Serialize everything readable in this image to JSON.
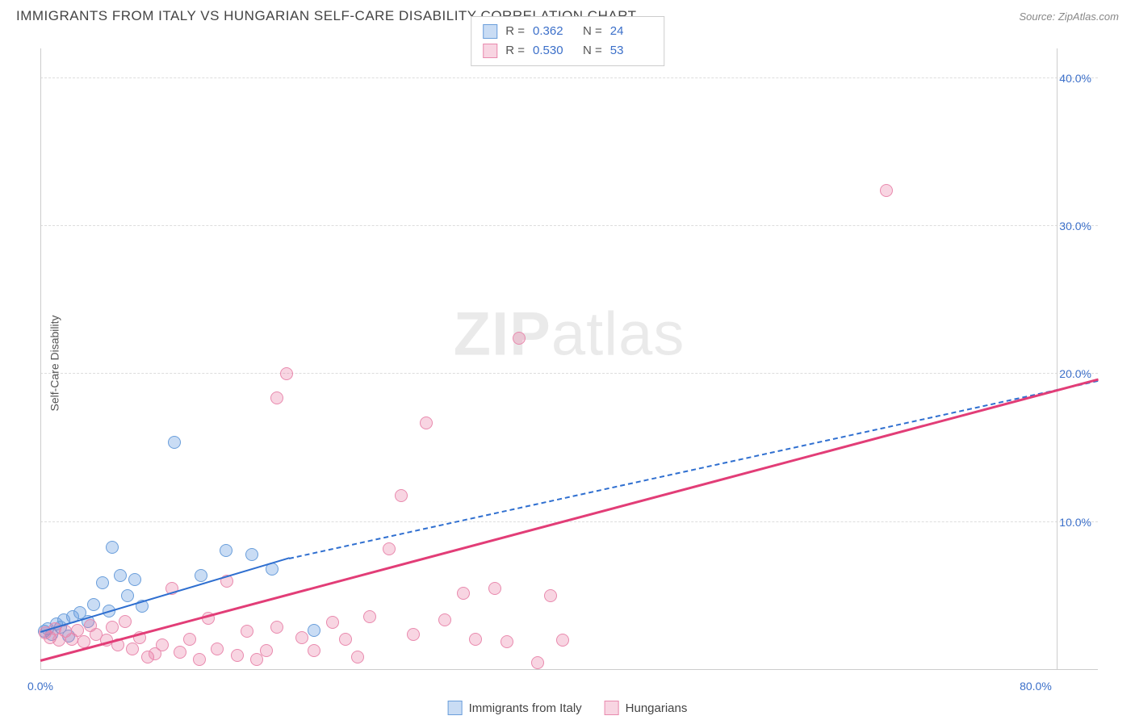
{
  "header": {
    "title": "IMMIGRANTS FROM ITALY VS HUNGARIAN SELF-CARE DISABILITY CORRELATION CHART",
    "source_prefix": "Source: ",
    "source_name": "ZipAtlas.com"
  },
  "watermark": {
    "zip": "ZIP",
    "atlas": "atlas"
  },
  "chart": {
    "type": "scatter",
    "ylabel": "Self-Care Disability",
    "xlim": [
      0,
      85
    ],
    "ylim": [
      0,
      42
    ],
    "background_color": "#ffffff",
    "grid_color": "#dddddd",
    "axis_color": "#cccccc",
    "tick_color": "#3b6fc9",
    "xticks": [
      {
        "v": 0,
        "label": "0.0%"
      },
      {
        "v": 80,
        "label": "80.0%"
      }
    ],
    "yticks": [
      {
        "v": 10,
        "label": "10.0%"
      },
      {
        "v": 20,
        "label": "20.0%"
      },
      {
        "v": 30,
        "label": "30.0%"
      },
      {
        "v": 40,
        "label": "40.0%"
      }
    ],
    "point_radius": 8,
    "series": [
      {
        "id": "italy",
        "name": "Immigrants from Italy",
        "color_fill": "rgba(99,155,224,0.35)",
        "color_stroke": "#6a9edb",
        "R": "0.362",
        "N": "24",
        "trend": {
          "x1": 0,
          "y1": 2.5,
          "x2": 20,
          "y2": 7.5,
          "color": "#2f6fd0",
          "width": 2,
          "dash_ext": {
            "x2": 85,
            "y2": 19.5
          }
        },
        "points": [
          [
            0.3,
            2.6
          ],
          [
            0.6,
            2.8
          ],
          [
            0.9,
            2.4
          ],
          [
            1.3,
            3.1
          ],
          [
            1.6,
            2.9
          ],
          [
            1.9,
            3.4
          ],
          [
            2.3,
            2.3
          ],
          [
            2.6,
            3.6
          ],
          [
            3.2,
            3.9
          ],
          [
            3.8,
            3.3
          ],
          [
            4.3,
            4.4
          ],
          [
            5.0,
            5.9
          ],
          [
            5.5,
            4.0
          ],
          [
            5.8,
            8.3
          ],
          [
            6.4,
            6.4
          ],
          [
            7.0,
            5.0
          ],
          [
            7.6,
            6.1
          ],
          [
            8.2,
            4.3
          ],
          [
            10.8,
            15.4
          ],
          [
            12.9,
            6.4
          ],
          [
            14.9,
            8.1
          ],
          [
            17.0,
            7.8
          ],
          [
            18.6,
            6.8
          ],
          [
            22.0,
            2.7
          ]
        ]
      },
      {
        "id": "hungarians",
        "name": "Hungarians",
        "color_fill": "rgba(233,117,158,0.30)",
        "color_stroke": "#e98aae",
        "R": "0.530",
        "N": "53",
        "trend": {
          "x1": 0,
          "y1": 0.6,
          "x2": 85,
          "y2": 19.6,
          "color": "#e23d77",
          "width": 2.5
        },
        "points": [
          [
            0.4,
            2.5
          ],
          [
            0.8,
            2.2
          ],
          [
            1.2,
            2.8
          ],
          [
            1.5,
            2.0
          ],
          [
            2.0,
            2.6
          ],
          [
            2.5,
            2.1
          ],
          [
            3.0,
            2.7
          ],
          [
            3.5,
            1.9
          ],
          [
            4.0,
            3.0
          ],
          [
            4.5,
            2.4
          ],
          [
            5.3,
            2.0
          ],
          [
            5.8,
            2.9
          ],
          [
            6.2,
            1.7
          ],
          [
            6.8,
            3.3
          ],
          [
            7.4,
            1.4
          ],
          [
            8.0,
            2.2
          ],
          [
            8.6,
            0.9
          ],
          [
            9.2,
            1.1
          ],
          [
            9.8,
            1.7
          ],
          [
            10.6,
            5.5
          ],
          [
            11.2,
            1.2
          ],
          [
            12.0,
            2.1
          ],
          [
            12.8,
            0.7
          ],
          [
            13.5,
            3.5
          ],
          [
            14.2,
            1.4
          ],
          [
            15.0,
            6.0
          ],
          [
            15.8,
            1.0
          ],
          [
            16.6,
            2.6
          ],
          [
            17.4,
            0.7
          ],
          [
            18.2,
            1.3
          ],
          [
            19.0,
            2.9
          ],
          [
            19.8,
            20.0
          ],
          [
            19.0,
            18.4
          ],
          [
            21.0,
            2.2
          ],
          [
            22.0,
            1.3
          ],
          [
            23.5,
            3.2
          ],
          [
            24.5,
            2.1
          ],
          [
            25.5,
            0.9
          ],
          [
            26.5,
            3.6
          ],
          [
            28.0,
            8.2
          ],
          [
            29.0,
            11.8
          ],
          [
            30.0,
            2.4
          ],
          [
            31.0,
            16.7
          ],
          [
            32.5,
            3.4
          ],
          [
            34.0,
            5.2
          ],
          [
            35.0,
            2.1
          ],
          [
            36.5,
            5.5
          ],
          [
            37.5,
            1.9
          ],
          [
            38.5,
            22.4
          ],
          [
            40.0,
            0.5
          ],
          [
            41.0,
            5.0
          ],
          [
            42.0,
            2.0
          ],
          [
            68.0,
            32.4
          ]
        ]
      }
    ],
    "legend_top": {
      "r_label": "R =",
      "n_label": "N ="
    }
  }
}
